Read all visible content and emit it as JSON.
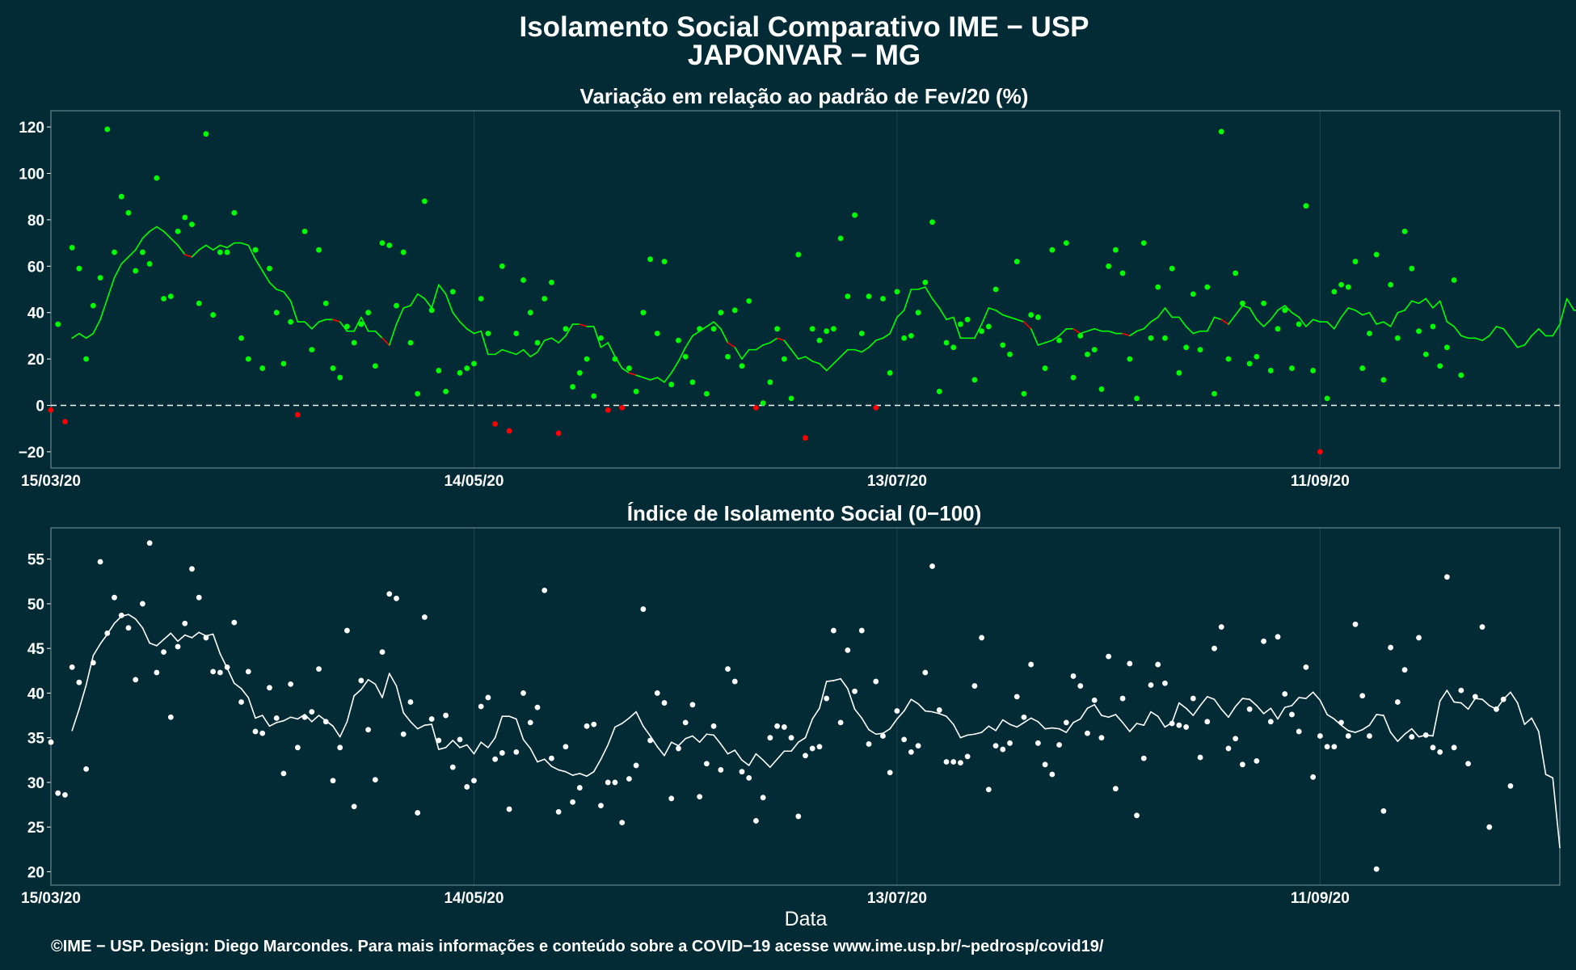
{
  "title_line1": "Isolamento Social Comparativo IME − USP",
  "title_line2": "JAPONVAR − MG",
  "x_axis_label": "Data",
  "footer": "©IME − USP. Design: Diego Marcondes. Para mais informações e conteúdo sobre a COVID−19 acesse www.ime.usp.br/~pedrosp/covid19/",
  "colors": {
    "background": "#022b36",
    "positive": "#00ff00",
    "negative": "#ff0000",
    "index": "#ffffff",
    "grid": "#1d4450"
  },
  "chart_data": [
    {
      "type": "scatter",
      "title": "Variação em relação ao padrão de Fev/20 (%)",
      "x_type": "date",
      "x_range": [
        "2020-03-15",
        "2020-10-15"
      ],
      "x_tick_labels": [
        "15/03/20",
        "14/05/20",
        "13/07/20",
        "11/09/20"
      ],
      "x_ticks": [
        "2020-03-15",
        "2020-05-14",
        "2020-07-13",
        "2020-09-11"
      ],
      "ylim": [
        -27,
        127
      ],
      "y_ticks": [
        -20,
        0,
        20,
        40,
        60,
        80,
        100,
        120
      ],
      "reference_line": 0,
      "point_color_rule": "green when >= 0, red when < 0",
      "series": [
        {
          "kind": "points",
          "start_date": "2020-03-15",
          "values": [
            -2,
            35,
            -7,
            68,
            59,
            20,
            43,
            55,
            119,
            66,
            90,
            83,
            58,
            66,
            61,
            98,
            46,
            47,
            75,
            81,
            78,
            44,
            117,
            39,
            66,
            66,
            83,
            29,
            20,
            67,
            16,
            59,
            40,
            18,
            36,
            -4,
            75,
            24,
            67,
            44,
            16,
            12,
            34,
            27,
            35,
            40,
            17,
            70,
            69,
            43,
            66,
            27,
            5,
            88,
            41,
            15,
            6,
            49,
            14,
            16,
            18,
            46,
            31,
            -8,
            60,
            -11,
            31,
            54,
            40,
            27,
            46,
            53,
            -12,
            33,
            8,
            14,
            20,
            4,
            29,
            -2,
            20,
            -1,
            16,
            6,
            40,
            63,
            31,
            62,
            9,
            28,
            21,
            10,
            33,
            5,
            33,
            40,
            21,
            41,
            17,
            45,
            -1,
            1,
            10,
            33,
            20,
            3,
            65,
            -14,
            33,
            28,
            32,
            33,
            72,
            47,
            82,
            31,
            47,
            -1,
            46,
            14,
            49,
            29,
            30,
            40,
            53,
            79,
            6,
            27,
            25,
            35,
            37,
            11,
            32,
            34,
            50,
            26,
            22,
            62,
            5,
            39,
            38,
            16,
            67,
            28,
            70,
            12,
            30,
            22,
            24,
            7,
            60,
            67,
            57,
            20,
            3,
            70,
            29,
            51,
            29,
            59,
            14,
            25,
            48,
            24,
            51,
            5,
            118,
            20,
            57,
            44,
            18,
            21,
            44,
            15,
            33,
            41,
            16,
            35,
            86,
            15,
            -20,
            3,
            49,
            52,
            51,
            62,
            16,
            31,
            65,
            11,
            52,
            29,
            75,
            59,
            32,
            22,
            34,
            17,
            25,
            54,
            13
          ]
        },
        {
          "kind": "rolling_mean_line",
          "start_date": "2020-03-18",
          "values": [
            29,
            31,
            29,
            31,
            37,
            46,
            55,
            61,
            64,
            67,
            72,
            75,
            77,
            75,
            72,
            69,
            65,
            64,
            67,
            69,
            67,
            69,
            68,
            70,
            70,
            69,
            63,
            58,
            53,
            50,
            49,
            45,
            36,
            36,
            33,
            36,
            37,
            37,
            36,
            32,
            32,
            38,
            32,
            32,
            29,
            26,
            35,
            42,
            43,
            48,
            46,
            42,
            52,
            48,
            40,
            36,
            33,
            31,
            32,
            22,
            22,
            24,
            23,
            22,
            24,
            21,
            23,
            28,
            29,
            27,
            30,
            35,
            35,
            34,
            34,
            25,
            27,
            21,
            16,
            14,
            13,
            12,
            11,
            12,
            10,
            14,
            19,
            25,
            30,
            32,
            34,
            36,
            33,
            27,
            25,
            20,
            24,
            24,
            26,
            27,
            29,
            28,
            24,
            20,
            21,
            19,
            18,
            15,
            18,
            21,
            24,
            24,
            23,
            25,
            28,
            29,
            31,
            38,
            41,
            50,
            50,
            51,
            46,
            42,
            37,
            38,
            29,
            29,
            29,
            35,
            42,
            41,
            39,
            38,
            37,
            36,
            33,
            26,
            27,
            28,
            30,
            33,
            33,
            31,
            32,
            33,
            32,
            32,
            31,
            31,
            30,
            32,
            33,
            36,
            38,
            42,
            38,
            38,
            34,
            31,
            32,
            32,
            38,
            37,
            35,
            39,
            43,
            42,
            37,
            34,
            37,
            41,
            43,
            40,
            38,
            34,
            37,
            36,
            36,
            33,
            38,
            42,
            41,
            39,
            40,
            35,
            36,
            34,
            40,
            41,
            45,
            44,
            46,
            42,
            45,
            36,
            34,
            30,
            29,
            29,
            28,
            30,
            34,
            33,
            29,
            25,
            26,
            30,
            33,
            30,
            30,
            35,
            46,
            41,
            41,
            38,
            40,
            46,
            46,
            40,
            43,
            41,
            38,
            31,
            30,
            27
          ]
        }
      ]
    },
    {
      "type": "scatter",
      "title": "Índice de Isolamento Social (0−100)",
      "x_type": "date",
      "x_range": [
        "2020-03-15",
        "2020-10-15"
      ],
      "x_tick_labels": [
        "15/03/20",
        "14/05/20",
        "13/07/20",
        "11/09/20"
      ],
      "x_ticks": [
        "2020-03-15",
        "2020-05-14",
        "2020-07-13",
        "2020-09-11"
      ],
      "ylim": [
        18.5,
        58.5
      ],
      "y_ticks": [
        20,
        25,
        30,
        35,
        40,
        45,
        50,
        55
      ],
      "series": [
        {
          "kind": "points",
          "start_date": "2020-03-15",
          "values": [
            34.5,
            28.8,
            28.6,
            42.9,
            41.2,
            31.5,
            43.4,
            54.7,
            46.7,
            50.7,
            48.7,
            47.3,
            41.5,
            50.0,
            56.8,
            42.3,
            44.6,
            37.3,
            45.2,
            47.8,
            53.9,
            50.7,
            46.2,
            42.4,
            42.3,
            42.9,
            47.9,
            39.0,
            42.4,
            35.7,
            35.5,
            40.6,
            37.2,
            31.0,
            41.0,
            33.9,
            37.3,
            37.9,
            42.7,
            36.8,
            30.2,
            33.9,
            47.0,
            27.3,
            41.4,
            35.9,
            30.3,
            44.6,
            51.1,
            50.6,
            35.4,
            39.0,
            26.6,
            48.5,
            37.1,
            34.7,
            37.5,
            31.7,
            34.8,
            29.5,
            30.2,
            38.5,
            39.5,
            32.6,
            33.3,
            27.0,
            33.4,
            40.0,
            36.7,
            38.4,
            51.5,
            32.7,
            26.7,
            34.0,
            27.8,
            29.4,
            36.3,
            36.5,
            27.4,
            30.0,
            30.0,
            25.5,
            30.4,
            31.9,
            49.4,
            34.7,
            40.0,
            38.9,
            28.2,
            33.8,
            36.7,
            38.7,
            28.4,
            32.1,
            36.3,
            31.4,
            42.7,
            41.3,
            31.2,
            30.5,
            25.7,
            28.3,
            35.0,
            36.3,
            36.2,
            35.0,
            26.2,
            33.0,
            33.8,
            34.0,
            39.4,
            47.0,
            36.7,
            44.8,
            40.2,
            47.0,
            34.3,
            41.3,
            35.2,
            31.1,
            38.0,
            34.8,
            33.4,
            34.1,
            42.3,
            54.2,
            38.1,
            32.3,
            32.3,
            32.2,
            32.9,
            40.8,
            46.2,
            29.2,
            34.1,
            33.7,
            34.4,
            39.6,
            37.3,
            43.2,
            34.4,
            32.0,
            30.9,
            34.2,
            36.7,
            41.9,
            40.8,
            35.5,
            39.2,
            35.0,
            44.1,
            29.3,
            39.4,
            43.3,
            26.3,
            32.7,
            40.9,
            43.2,
            41.1,
            36.6,
            36.4,
            36.2,
            39.4,
            32.8,
            36.8,
            45.0,
            47.4,
            33.8,
            34.9,
            32.0,
            38.2,
            32.4,
            45.8,
            36.8,
            46.3,
            39.9,
            37.6,
            35.7,
            42.9,
            30.6,
            35.2,
            34.0,
            34.0,
            36.7,
            35.2,
            47.7,
            39.7,
            35.2,
            20.3,
            26.8,
            45.1,
            39.0,
            42.6,
            35.1,
            46.2,
            35.3,
            33.9,
            33.4,
            53.0,
            33.9,
            40.3,
            32.1,
            39.6,
            47.4,
            25.0,
            38.2,
            39.3,
            29.6
          ]
        },
        {
          "kind": "rolling_mean_line",
          "start_date": "2020-03-18",
          "values": [
            35.8,
            38.2,
            40.9,
            44.2,
            45.5,
            46.6,
            47.8,
            48.6,
            48.8,
            48.3,
            47.3,
            45.6,
            45.3,
            46.0,
            46.7,
            45.8,
            46.5,
            46.2,
            46.8,
            46.4,
            46.6,
            44.4,
            42.8,
            41.1,
            40.5,
            39.5,
            37.2,
            37.5,
            36.3,
            36.7,
            36.9,
            37.3,
            37.1,
            37.6,
            36.8,
            37.5,
            36.9,
            36.3,
            35.1,
            36.8,
            39.7,
            40.4,
            41.5,
            41.0,
            39.5,
            42.2,
            40.8,
            37.8,
            36.8,
            36.0,
            36.4,
            36.5,
            33.7,
            33.9,
            34.7,
            33.9,
            34.2,
            33.2,
            34.5,
            33.9,
            35.0,
            37.4,
            37.4,
            37.1,
            34.8,
            33.8,
            32.3,
            32.6,
            31.8,
            31.4,
            31.2,
            30.8,
            31.0,
            30.7,
            31.2,
            32.6,
            34.2,
            36.2,
            36.6,
            37.2,
            37.9,
            36.3,
            35.2,
            34.0,
            33.0,
            34.5,
            34.1,
            34.9,
            35.2,
            34.5,
            35.4,
            35.3,
            34.3,
            33.2,
            33.6,
            32.5,
            31.9,
            33.2,
            32.5,
            31.7,
            32.6,
            33.5,
            33.5,
            34.5,
            35.0,
            37.1,
            38.3,
            41.3,
            41.4,
            41.6,
            40.5,
            38.2,
            37.2,
            35.9,
            35.4,
            35.5,
            36.0,
            37.1,
            38.0,
            39.3,
            38.8,
            38.0,
            37.9,
            37.7,
            37.4,
            36.5,
            35.0,
            35.3,
            35.4,
            35.6,
            36.3,
            35.8,
            37.0,
            36.5,
            36.2,
            36.7,
            37.2,
            36.8,
            36.0,
            36.1,
            36.0,
            35.6,
            36.7,
            37.1,
            38.3,
            38.7,
            37.5,
            37.3,
            37.6,
            36.7,
            35.7,
            36.6,
            36.4,
            37.9,
            37.4,
            36.2,
            36.7,
            38.9,
            38.3,
            37.5,
            38.6,
            39.6,
            39.3,
            38.2,
            37.3,
            38.5,
            39.4,
            39.3,
            38.6,
            37.7,
            38.3,
            37.1,
            38.4,
            38.6,
            39.5,
            39.4,
            40.1,
            39.2,
            37.6,
            37.1,
            36.4,
            35.8,
            35.6,
            35.9,
            36.4,
            37.6,
            37.5,
            35.6,
            34.6,
            35.4,
            36.0,
            35.1,
            35.3,
            35.2,
            39.1,
            40.3,
            39.0,
            38.9,
            38.2,
            39.4,
            39.3,
            38.6,
            38.2,
            39.3,
            40.1,
            38.9,
            36.5,
            37.2,
            35.7,
            30.9,
            30.5,
            22.7
          ]
        }
      ]
    }
  ]
}
